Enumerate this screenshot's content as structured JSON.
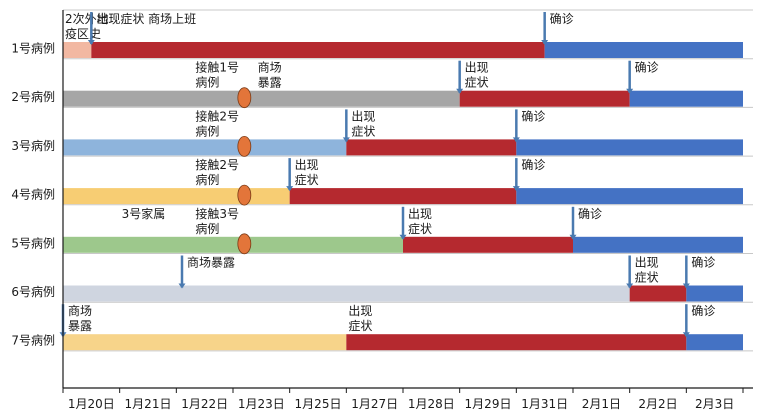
{
  "chart_data": {
    "type": "gantt-timeline",
    "title": "",
    "xlabel": "",
    "ylabel": "",
    "x_ticks": [
      "1月20日",
      "1月21日",
      "1月22日",
      "1月23日",
      "1月25日",
      "1月27日",
      "1月28日",
      "1月29日",
      "1月31日",
      "2月1日",
      "2月2日",
      "2月3日"
    ],
    "colors": {
      "exposure_travel": "#f2b8a2",
      "symptom": "#b5292f",
      "diagnosis": "#4472c4",
      "case2_pre": "#a6a6a6",
      "case3_pre": "#8eb4dc",
      "case4_pre": "#f7cd73",
      "case5_pre": "#9dc88c",
      "case6_pre": "#cfd5e0",
      "case7_pre": "#f7d48a",
      "contact_dot": "#e3753a",
      "marker": "#4a7ab0"
    },
    "rows": [
      {
        "label": "1号病例",
        "segments": [
          {
            "from": 0.0,
            "to": 0.5,
            "phase": "exposure_travel"
          },
          {
            "from": 0.5,
            "to": 8.5,
            "phase": "symptom"
          },
          {
            "from": 8.5,
            "to": 12.0,
            "phase": "diagnosis"
          }
        ],
        "contact_dot": null,
        "annotations": [
          {
            "at": 0.0,
            "text": "2次外地\n疫区史",
            "marker": false
          },
          {
            "at": 0.5,
            "text": "出现症状  商场上班",
            "marker": true
          },
          {
            "at": 8.5,
            "text": "确诊",
            "marker": true
          }
        ]
      },
      {
        "label": "2号病例",
        "segments": [
          {
            "from": 0.0,
            "to": 7.0,
            "phase": "case2_pre"
          },
          {
            "from": 7.0,
            "to": 10.0,
            "phase": "symptom"
          },
          {
            "from": 10.0,
            "to": 12.0,
            "phase": "diagnosis"
          }
        ],
        "contact_dot": 3.2,
        "annotations": [
          {
            "at": 2.3,
            "text": "接触1号\n病例",
            "marker": false
          },
          {
            "at": 3.4,
            "text": "商场\n暴露",
            "marker": false
          },
          {
            "at": 7.0,
            "text": "出现\n症状",
            "marker": true
          },
          {
            "at": 10.0,
            "text": "确诊",
            "marker": true
          }
        ]
      },
      {
        "label": "3号病例",
        "segments": [
          {
            "from": 0.0,
            "to": 5.0,
            "phase": "case3_pre"
          },
          {
            "from": 5.0,
            "to": 8.0,
            "phase": "symptom"
          },
          {
            "from": 8.0,
            "to": 12.0,
            "phase": "diagnosis"
          }
        ],
        "contact_dot": 3.2,
        "annotations": [
          {
            "at": 2.3,
            "text": "接触2号\n病例",
            "marker": false
          },
          {
            "at": 5.0,
            "text": "出现\n症状",
            "marker": true
          },
          {
            "at": 8.0,
            "text": "确诊",
            "marker": true
          }
        ]
      },
      {
        "label": "4号病例",
        "segments": [
          {
            "from": 0.0,
            "to": 4.0,
            "phase": "case4_pre"
          },
          {
            "from": 4.0,
            "to": 8.0,
            "phase": "symptom"
          },
          {
            "from": 8.0,
            "to": 12.0,
            "phase": "diagnosis"
          }
        ],
        "contact_dot": 3.2,
        "annotations": [
          {
            "at": 2.3,
            "text": "接触2号\n病例",
            "marker": false
          },
          {
            "at": 4.0,
            "text": "出现\n症状",
            "marker": true
          },
          {
            "at": 8.0,
            "text": "确诊",
            "marker": true
          }
        ]
      },
      {
        "label": "5号病例",
        "segments": [
          {
            "from": 0.0,
            "to": 6.0,
            "phase": "case5_pre"
          },
          {
            "from": 6.0,
            "to": 9.0,
            "phase": "symptom"
          },
          {
            "from": 9.0,
            "to": 12.0,
            "phase": "diagnosis"
          }
        ],
        "contact_dot": 3.2,
        "annotations": [
          {
            "at": 1.0,
            "text": "3号家属",
            "marker": false
          },
          {
            "at": 2.3,
            "text": "接触3号\n病例",
            "marker": false
          },
          {
            "at": 6.0,
            "text": "出现\n症状",
            "marker": true
          },
          {
            "at": 9.0,
            "text": "确诊",
            "marker": true
          }
        ]
      },
      {
        "label": "6号病例",
        "segments": [
          {
            "from": 0.0,
            "to": 10.0,
            "phase": "case6_pre"
          },
          {
            "from": 10.0,
            "to": 11.0,
            "phase": "symptom"
          },
          {
            "from": 11.0,
            "to": 12.0,
            "phase": "diagnosis"
          }
        ],
        "contact_dot": null,
        "annotations": [
          {
            "at": 2.1,
            "text": "商场暴露",
            "marker": true
          },
          {
            "at": 10.0,
            "text": "出现\n症状",
            "marker": true
          },
          {
            "at": 11.0,
            "text": "确诊",
            "marker": true
          }
        ]
      },
      {
        "label": "7号病例",
        "segments": [
          {
            "from": 0.0,
            "to": 5.0,
            "phase": "case7_pre"
          },
          {
            "from": 5.0,
            "to": 11.0,
            "phase": "symptom"
          },
          {
            "from": 11.0,
            "to": 12.0,
            "phase": "diagnosis"
          }
        ],
        "contact_dot": null,
        "annotations": [
          {
            "at": 0.0,
            "text": "商场\n暴露",
            "marker": true
          },
          {
            "at": 5.0,
            "text": "出现\n症状",
            "marker": false
          },
          {
            "at": 11.0,
            "text": "确诊",
            "marker": true
          }
        ]
      }
    ]
  }
}
